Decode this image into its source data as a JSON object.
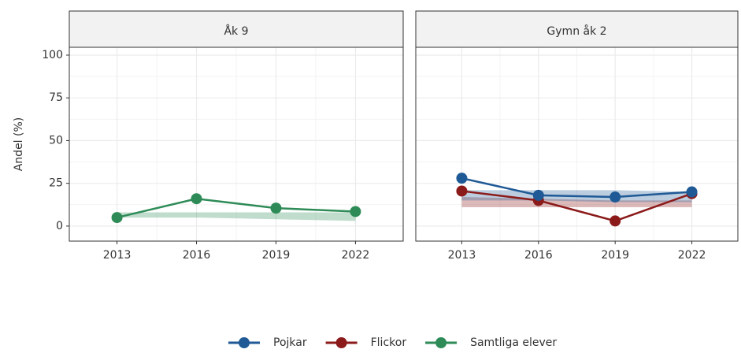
{
  "chart_data": [
    {
      "type": "line",
      "title": "Åk 9",
      "y_label": "Andel (%)",
      "x": [
        2013,
        2016,
        2019,
        2022
      ],
      "xlim": [
        2011.2,
        2023.8
      ],
      "xticks": [
        2013,
        2016,
        2019,
        2022
      ],
      "ylim": [
        -8.8,
        104.6
      ],
      "yticks": [
        0,
        25,
        50,
        75,
        100
      ],
      "grid": true,
      "series": [
        {
          "name": "Samtliga elever",
          "color": "#2e8b57",
          "values": [
            5,
            16,
            10.5,
            8.5
          ],
          "lower": [
            5,
            5,
            4,
            3
          ],
          "upper": [
            8,
            8,
            8,
            8
          ]
        }
      ]
    },
    {
      "type": "line",
      "title": "Gymn åk 2",
      "x": [
        2013,
        2016,
        2019,
        2022
      ],
      "xlim": [
        2011.2,
        2023.8
      ],
      "xticks": [
        2013,
        2016,
        2019,
        2022
      ],
      "ylim": [
        -8.8,
        104.6
      ],
      "yticks": [
        0,
        25,
        50,
        75,
        100
      ],
      "grid": true,
      "series": [
        {
          "name": "Flickor",
          "color": "#8b1a1a",
          "values": [
            20.5,
            15,
            3,
            19
          ],
          "lower": [
            11,
            11,
            11,
            11
          ],
          "upper": [
            17,
            16,
            15,
            15
          ]
        },
        {
          "name": "Pojkar",
          "color": "#1f5a96",
          "values": [
            28,
            18,
            17,
            20
          ],
          "lower": [
            15,
            15,
            14,
            14
          ],
          "upper": [
            21,
            21,
            21,
            20
          ]
        }
      ]
    }
  ]
}
